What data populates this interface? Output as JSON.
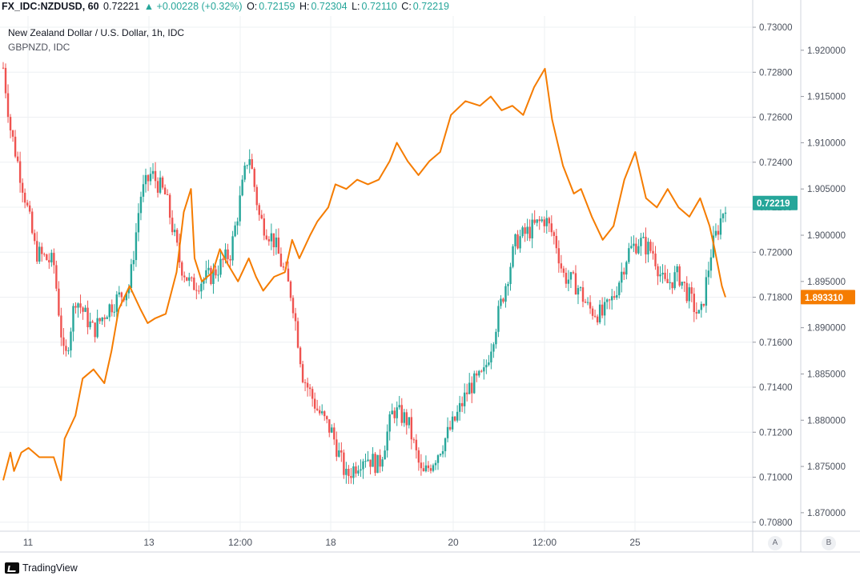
{
  "header": {
    "symbol": "FX_IDC:NZDUSD, 60",
    "price": "0.72221",
    "change": "▲ +0.00228 (+0.32%)",
    "o_label": "O:",
    "o_val": "0.72159",
    "h_label": "H:",
    "h_val": "0.72304",
    "l_label": "L:",
    "l_val": "0.72110",
    "c_label": "C:",
    "c_val": "0.72219"
  },
  "legend": {
    "main": "New Zealand Dollar / U.S. Dollar, 1h, IDC",
    "compare": "GBPNZD, IDC"
  },
  "scale_buttons": {
    "a": "A",
    "b": "B"
  },
  "brand": "TradingView",
  "colors": {
    "up": "#26a69a",
    "down": "#ef5350",
    "compare_line": "#f57c00",
    "grid": "#eef0f3",
    "axis_text": "#4c525e"
  },
  "chart_data": {
    "type": "line",
    "title": "New Zealand Dollar / U.S. Dollar, 1h, IDC",
    "x_ticks": [
      "11",
      "13",
      "12:00",
      "18",
      "20",
      "12:00",
      "25"
    ],
    "left_axis": {
      "ticks": [
        "0.73000",
        "0.72800",
        "0.72600",
        "0.72400",
        "0.72200",
        "0.72000",
        "0.71800",
        "0.71600",
        "0.71400",
        "0.71200",
        "0.71000",
        "0.70800"
      ],
      "range": [
        0.7076,
        0.7305
      ]
    },
    "right_axis": {
      "ticks": [
        "1.920000",
        "1.915000",
        "1.910000",
        "1.905000",
        "1.900000",
        "1.895000",
        "1.890000",
        "1.885000",
        "1.880000",
        "1.875000",
        "1.870000"
      ],
      "range": [
        1.868,
        1.9237
      ]
    },
    "last_price_label": "0.72219",
    "last_compare_label": "1.893310",
    "series": [
      {
        "name": "NZDUSD",
        "style": "candles",
        "anchors": [
          [
            0.0,
            0.7282
          ],
          [
            0.01,
            0.7255
          ],
          [
            0.03,
            0.7225
          ],
          [
            0.045,
            0.72
          ],
          [
            0.07,
            0.7195
          ],
          [
            0.085,
            0.715
          ],
          [
            0.1,
            0.718
          ],
          [
            0.125,
            0.7165
          ],
          [
            0.145,
            0.7175
          ],
          [
            0.175,
            0.7185
          ],
          [
            0.19,
            0.7225
          ],
          [
            0.205,
            0.7235
          ],
          [
            0.225,
            0.7225
          ],
          [
            0.245,
            0.7195
          ],
          [
            0.26,
            0.7185
          ],
          [
            0.29,
            0.719
          ],
          [
            0.315,
            0.72
          ],
          [
            0.34,
            0.7245
          ],
          [
            0.355,
            0.7215
          ],
          [
            0.375,
            0.7205
          ],
          [
            0.4,
            0.718
          ],
          [
            0.415,
            0.7145
          ],
          [
            0.435,
            0.713
          ],
          [
            0.455,
            0.712
          ],
          [
            0.475,
            0.71
          ],
          [
            0.5,
            0.711
          ],
          [
            0.52,
            0.7105
          ],
          [
            0.54,
            0.713
          ],
          [
            0.56,
            0.7125
          ],
          [
            0.58,
            0.71
          ],
          [
            0.6,
            0.711
          ],
          [
            0.625,
            0.7125
          ],
          [
            0.645,
            0.714
          ],
          [
            0.665,
            0.7145
          ],
          [
            0.68,
            0.7165
          ],
          [
            0.695,
            0.7185
          ],
          [
            0.71,
            0.7205
          ],
          [
            0.73,
            0.721
          ],
          [
            0.75,
            0.7215
          ],
          [
            0.765,
            0.7205
          ],
          [
            0.775,
            0.719
          ],
          [
            0.795,
            0.7185
          ],
          [
            0.81,
            0.7175
          ],
          [
            0.83,
            0.7172
          ],
          [
            0.845,
            0.718
          ],
          [
            0.865,
            0.72
          ],
          [
            0.88,
            0.7205
          ],
          [
            0.9,
            0.72
          ],
          [
            0.915,
            0.7185
          ],
          [
            0.935,
            0.719
          ],
          [
            0.95,
            0.718
          ],
          [
            0.965,
            0.717
          ],
          [
            0.98,
            0.72
          ],
          [
            1.0,
            0.7222
          ]
        ]
      },
      {
        "name": "GBPNZD",
        "style": "line",
        "points": [
          [
            0.0,
            1.8735
          ],
          [
            0.01,
            1.8765
          ],
          [
            0.015,
            1.8745
          ],
          [
            0.025,
            1.8765
          ],
          [
            0.035,
            1.877
          ],
          [
            0.05,
            1.876
          ],
          [
            0.07,
            1.876
          ],
          [
            0.08,
            1.8735
          ],
          [
            0.085,
            1.878
          ],
          [
            0.1,
            1.8805
          ],
          [
            0.11,
            1.8845
          ],
          [
            0.125,
            1.8855
          ],
          [
            0.14,
            1.884
          ],
          [
            0.15,
            1.8875
          ],
          [
            0.16,
            1.892
          ],
          [
            0.175,
            1.8945
          ],
          [
            0.19,
            1.892
          ],
          [
            0.2,
            1.8905
          ],
          [
            0.21,
            1.891
          ],
          [
            0.225,
            1.8915
          ],
          [
            0.24,
            1.896
          ],
          [
            0.25,
            1.9025
          ],
          [
            0.26,
            1.905
          ],
          [
            0.265,
            1.8975
          ],
          [
            0.275,
            1.895
          ],
          [
            0.29,
            1.896
          ],
          [
            0.3,
            1.8985
          ],
          [
            0.31,
            1.897
          ],
          [
            0.325,
            1.895
          ],
          [
            0.34,
            1.8975
          ],
          [
            0.35,
            1.8955
          ],
          [
            0.36,
            1.894
          ],
          [
            0.375,
            1.8955
          ],
          [
            0.39,
            1.896
          ],
          [
            0.4,
            1.8995
          ],
          [
            0.41,
            1.8975
          ],
          [
            0.425,
            1.9
          ],
          [
            0.435,
            1.9015
          ],
          [
            0.45,
            1.903
          ],
          [
            0.46,
            1.9055
          ],
          [
            0.475,
            1.905
          ],
          [
            0.49,
            1.906
          ],
          [
            0.505,
            1.9055
          ],
          [
            0.52,
            1.906
          ],
          [
            0.535,
            1.908
          ],
          [
            0.545,
            1.91
          ],
          [
            0.56,
            1.908
          ],
          [
            0.575,
            1.9065
          ],
          [
            0.59,
            1.908
          ],
          [
            0.605,
            1.909
          ],
          [
            0.62,
            1.913
          ],
          [
            0.64,
            1.9145
          ],
          [
            0.66,
            1.914
          ],
          [
            0.675,
            1.915
          ],
          [
            0.69,
            1.9135
          ],
          [
            0.705,
            1.914
          ],
          [
            0.72,
            1.913
          ],
          [
            0.735,
            1.916
          ],
          [
            0.75,
            1.918
          ],
          [
            0.76,
            1.9125
          ],
          [
            0.775,
            1.9075
          ],
          [
            0.79,
            1.9045
          ],
          [
            0.8,
            1.905
          ],
          [
            0.815,
            1.902
          ],
          [
            0.83,
            1.8995
          ],
          [
            0.845,
            1.901
          ],
          [
            0.86,
            1.906
          ],
          [
            0.875,
            1.909
          ],
          [
            0.89,
            1.904
          ],
          [
            0.905,
            1.903
          ],
          [
            0.92,
            1.905
          ],
          [
            0.935,
            1.903
          ],
          [
            0.95,
            1.902
          ],
          [
            0.965,
            1.904
          ],
          [
            0.978,
            1.901
          ],
          [
            0.985,
            1.8985
          ],
          [
            0.995,
            1.8945
          ],
          [
            1.0,
            1.8933
          ]
        ]
      }
    ],
    "grid": true
  }
}
